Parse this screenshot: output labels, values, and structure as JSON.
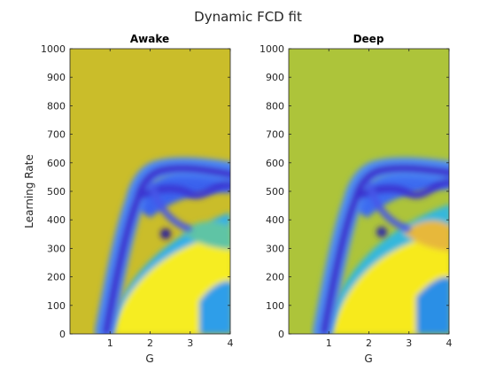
{
  "figure": {
    "title": "Dynamic FCD fit"
  },
  "chart_data": [
    {
      "type": "heatmap",
      "title": "Awake",
      "xlabel": "G",
      "ylabel": "Learning Rate",
      "xlim": [
        0,
        4
      ],
      "ylim": [
        0,
        1000
      ],
      "xticks": [
        "1",
        "2",
        "3",
        "4"
      ],
      "yticks": [
        "0",
        "100",
        "200",
        "300",
        "400",
        "500",
        "600",
        "700",
        "800",
        "900",
        "1000"
      ],
      "colormap": "parula",
      "background_color": "#cabd2a",
      "grid": false
    },
    {
      "type": "heatmap",
      "title": "Deep",
      "xlabel": "G",
      "ylabel": "",
      "xlim": [
        0,
        4
      ],
      "ylim": [
        0,
        1000
      ],
      "xticks": [
        "1",
        "2",
        "3",
        "4"
      ],
      "yticks": [
        "0",
        "100",
        "200",
        "300",
        "400",
        "500",
        "600",
        "700",
        "800",
        "900",
        "1000"
      ],
      "colormap": "parula",
      "background_color": "#adc43a",
      "grid": false
    }
  ]
}
